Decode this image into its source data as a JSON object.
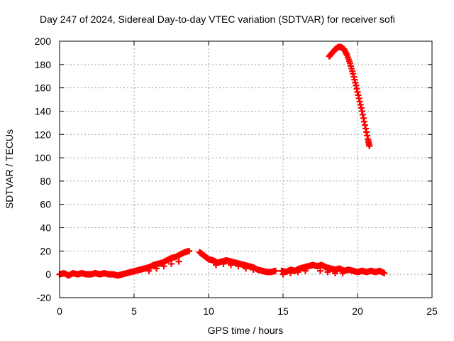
{
  "chart_data": {
    "type": "scatter",
    "title": "Day 247 of 2024, Sidereal Day-to-day VTEC variation (SDTVAR) for receiver sofi",
    "xlabel": "GPS time / hours",
    "ylabel": "SDTVAR / TECUs",
    "xlim": [
      0,
      25
    ],
    "ylim": [
      -20,
      200
    ],
    "xticks": [
      0,
      5,
      10,
      15,
      20,
      25
    ],
    "yticks": [
      -20,
      0,
      20,
      40,
      60,
      80,
      100,
      120,
      140,
      160,
      180,
      200
    ],
    "grid": true,
    "marker": "+",
    "series": [
      {
        "color": "#ff0000",
        "points": [
          [
            0.0,
            0
          ],
          [
            0.3,
            1
          ],
          [
            0.6,
            -1
          ],
          [
            0.9,
            1
          ],
          [
            1.2,
            0
          ],
          [
            1.5,
            1
          ],
          [
            1.8,
            0
          ],
          [
            2.1,
            0
          ],
          [
            2.4,
            1
          ],
          [
            2.7,
            0
          ],
          [
            3.0,
            1
          ],
          [
            3.3,
            0
          ],
          [
            3.6,
            0
          ],
          [
            3.9,
            -1
          ],
          [
            4.2,
            0
          ],
          [
            4.5,
            1
          ],
          [
            4.8,
            2
          ],
          [
            5.1,
            3
          ],
          [
            5.4,
            4
          ],
          [
            5.7,
            5
          ],
          [
            6.0,
            6
          ],
          [
            6.3,
            8
          ],
          [
            6.6,
            9
          ],
          [
            6.9,
            10
          ],
          [
            7.2,
            12
          ],
          [
            7.5,
            14
          ],
          [
            7.8,
            15
          ],
          [
            8.1,
            17
          ],
          [
            8.4,
            19
          ],
          [
            8.7,
            20
          ],
          [
            6.0,
            3
          ],
          [
            6.5,
            5
          ],
          [
            7.0,
            7
          ],
          [
            7.5,
            9
          ],
          [
            8.0,
            11
          ],
          [
            9.4,
            19
          ],
          [
            9.6,
            17
          ],
          [
            9.8,
            15
          ],
          [
            10.0,
            13
          ],
          [
            10.3,
            12
          ],
          [
            10.6,
            10
          ],
          [
            10.9,
            11
          ],
          [
            11.2,
            12
          ],
          [
            11.5,
            11
          ],
          [
            11.8,
            10
          ],
          [
            12.1,
            9
          ],
          [
            12.4,
            8
          ],
          [
            12.7,
            7
          ],
          [
            13.0,
            6
          ],
          [
            13.3,
            4
          ],
          [
            13.6,
            3
          ],
          [
            13.9,
            2
          ],
          [
            14.2,
            2
          ],
          [
            14.5,
            3
          ],
          [
            10.5,
            8
          ],
          [
            11.0,
            9
          ],
          [
            11.5,
            8
          ],
          [
            12.0,
            7
          ],
          [
            12.5,
            5
          ],
          [
            13.0,
            4
          ],
          [
            14.9,
            3
          ],
          [
            15.2,
            2
          ],
          [
            15.5,
            4
          ],
          [
            15.8,
            3
          ],
          [
            16.1,
            5
          ],
          [
            16.4,
            6
          ],
          [
            16.7,
            7
          ],
          [
            17.0,
            8
          ],
          [
            17.3,
            7
          ],
          [
            17.6,
            8
          ],
          [
            17.9,
            6
          ],
          [
            18.2,
            5
          ],
          [
            18.5,
            4
          ],
          [
            18.8,
            5
          ],
          [
            19.1,
            3
          ],
          [
            19.4,
            4
          ],
          [
            19.7,
            3
          ],
          [
            20.0,
            2
          ],
          [
            20.3,
            3
          ],
          [
            20.6,
            2
          ],
          [
            20.9,
            3
          ],
          [
            21.2,
            2
          ],
          [
            21.5,
            3
          ],
          [
            21.8,
            1
          ],
          [
            15.0,
            0
          ],
          [
            15.5,
            1
          ],
          [
            16.0,
            2
          ],
          [
            16.5,
            3
          ],
          [
            17.5,
            3
          ],
          [
            18.0,
            2
          ],
          [
            18.5,
            1
          ],
          [
            19.0,
            1
          ],
          [
            18.1,
            187
          ],
          [
            18.3,
            190
          ],
          [
            18.5,
            193
          ],
          [
            18.7,
            195
          ],
          [
            18.9,
            195
          ],
          [
            19.1,
            193
          ],
          [
            19.3,
            188
          ],
          [
            19.5,
            181
          ],
          [
            19.7,
            172
          ],
          [
            19.9,
            162
          ],
          [
            20.1,
            151
          ],
          [
            20.3,
            140
          ],
          [
            20.5,
            128
          ],
          [
            20.7,
            116
          ],
          [
            20.8,
            110
          ]
        ]
      }
    ]
  }
}
